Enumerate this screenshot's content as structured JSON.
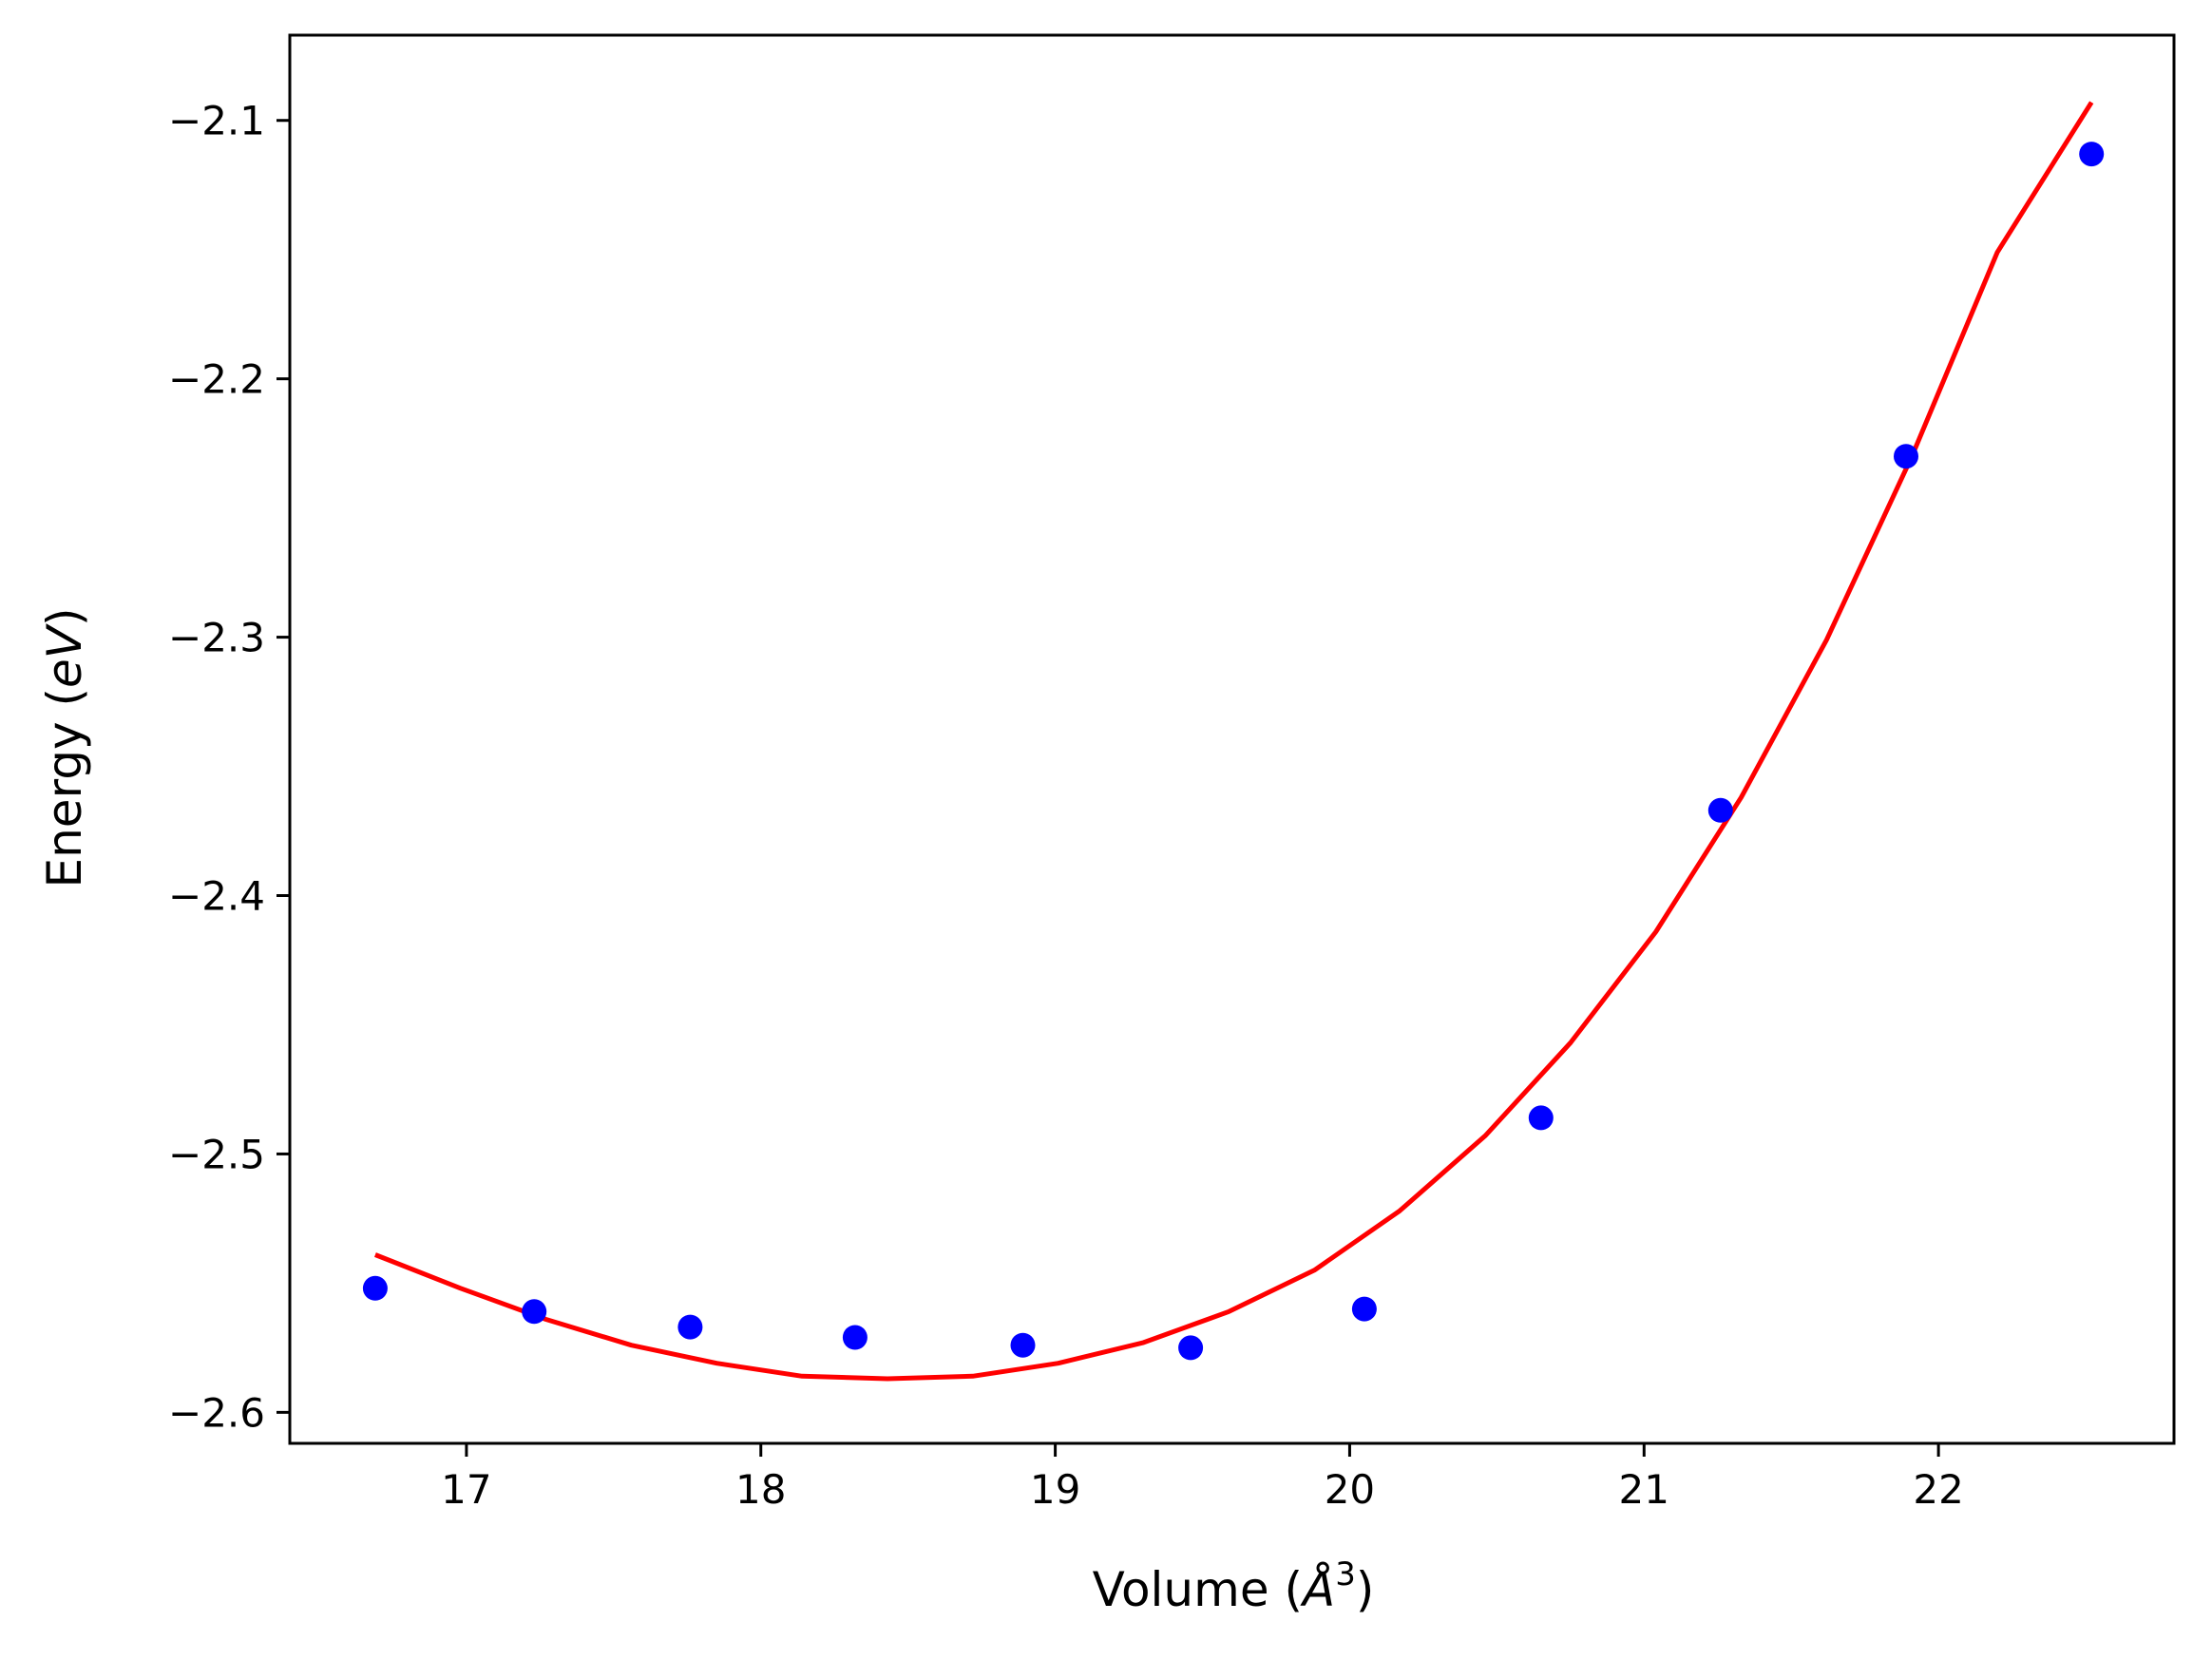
{
  "chart_data": {
    "type": "scatter",
    "title": "",
    "xlabel": "Volume (Å³)",
    "xlabel_parts": {
      "before": "Volume (",
      "italic": "Å",
      "sup": "3",
      "after": ")"
    },
    "ylabel": "Energy (eV)",
    "ylabel_parts": {
      "before": "Energy (",
      "italic": "eV",
      "after": ")"
    },
    "xlim": [
      16.4,
      22.8
    ],
    "ylim": [
      -2.612,
      -2.067
    ],
    "x_ticks": [
      17,
      18,
      19,
      20,
      21,
      22
    ],
    "x_tick_labels": [
      "17",
      "18",
      "19",
      "20",
      "21",
      "22"
    ],
    "y_ticks": [
      -2.1,
      -2.2,
      -2.3,
      -2.4,
      -2.5,
      -2.6
    ],
    "y_tick_labels": [
      "−2.1",
      "−2.2",
      "−2.3",
      "−2.4",
      "−2.5",
      "−2.6"
    ],
    "grid": false,
    "legend": "none",
    "series": [
      {
        "kind": "points",
        "color": "#0000ff",
        "x": [
          16.69,
          17.23,
          17.76,
          18.32,
          18.89,
          19.46,
          20.05,
          20.65,
          21.26,
          21.89,
          22.52
        ],
        "y": [
          -2.552,
          -2.561,
          -2.567,
          -2.571,
          -2.574,
          -2.575,
          -2.56,
          -2.486,
          -2.367,
          -2.23,
          -2.113
        ]
      },
      {
        "kind": "fit-curve",
        "color": "#ff0000",
        "x": [
          16.69,
          16.98,
          17.27,
          17.56,
          17.85,
          18.14,
          18.43,
          18.72,
          19.01,
          19.3,
          19.59,
          19.88,
          20.17,
          20.46,
          20.75,
          21.04,
          21.33,
          21.62,
          21.91,
          22.2,
          22.52
        ],
        "y": [
          -2.539,
          -2.552,
          -2.564,
          -2.574,
          -2.581,
          -2.586,
          -2.587,
          -2.586,
          -2.581,
          -2.573,
          -2.561,
          -2.545,
          -2.522,
          -2.493,
          -2.457,
          -2.414,
          -2.362,
          -2.301,
          -2.23,
          -2.151,
          -2.093
        ]
      }
    ]
  }
}
